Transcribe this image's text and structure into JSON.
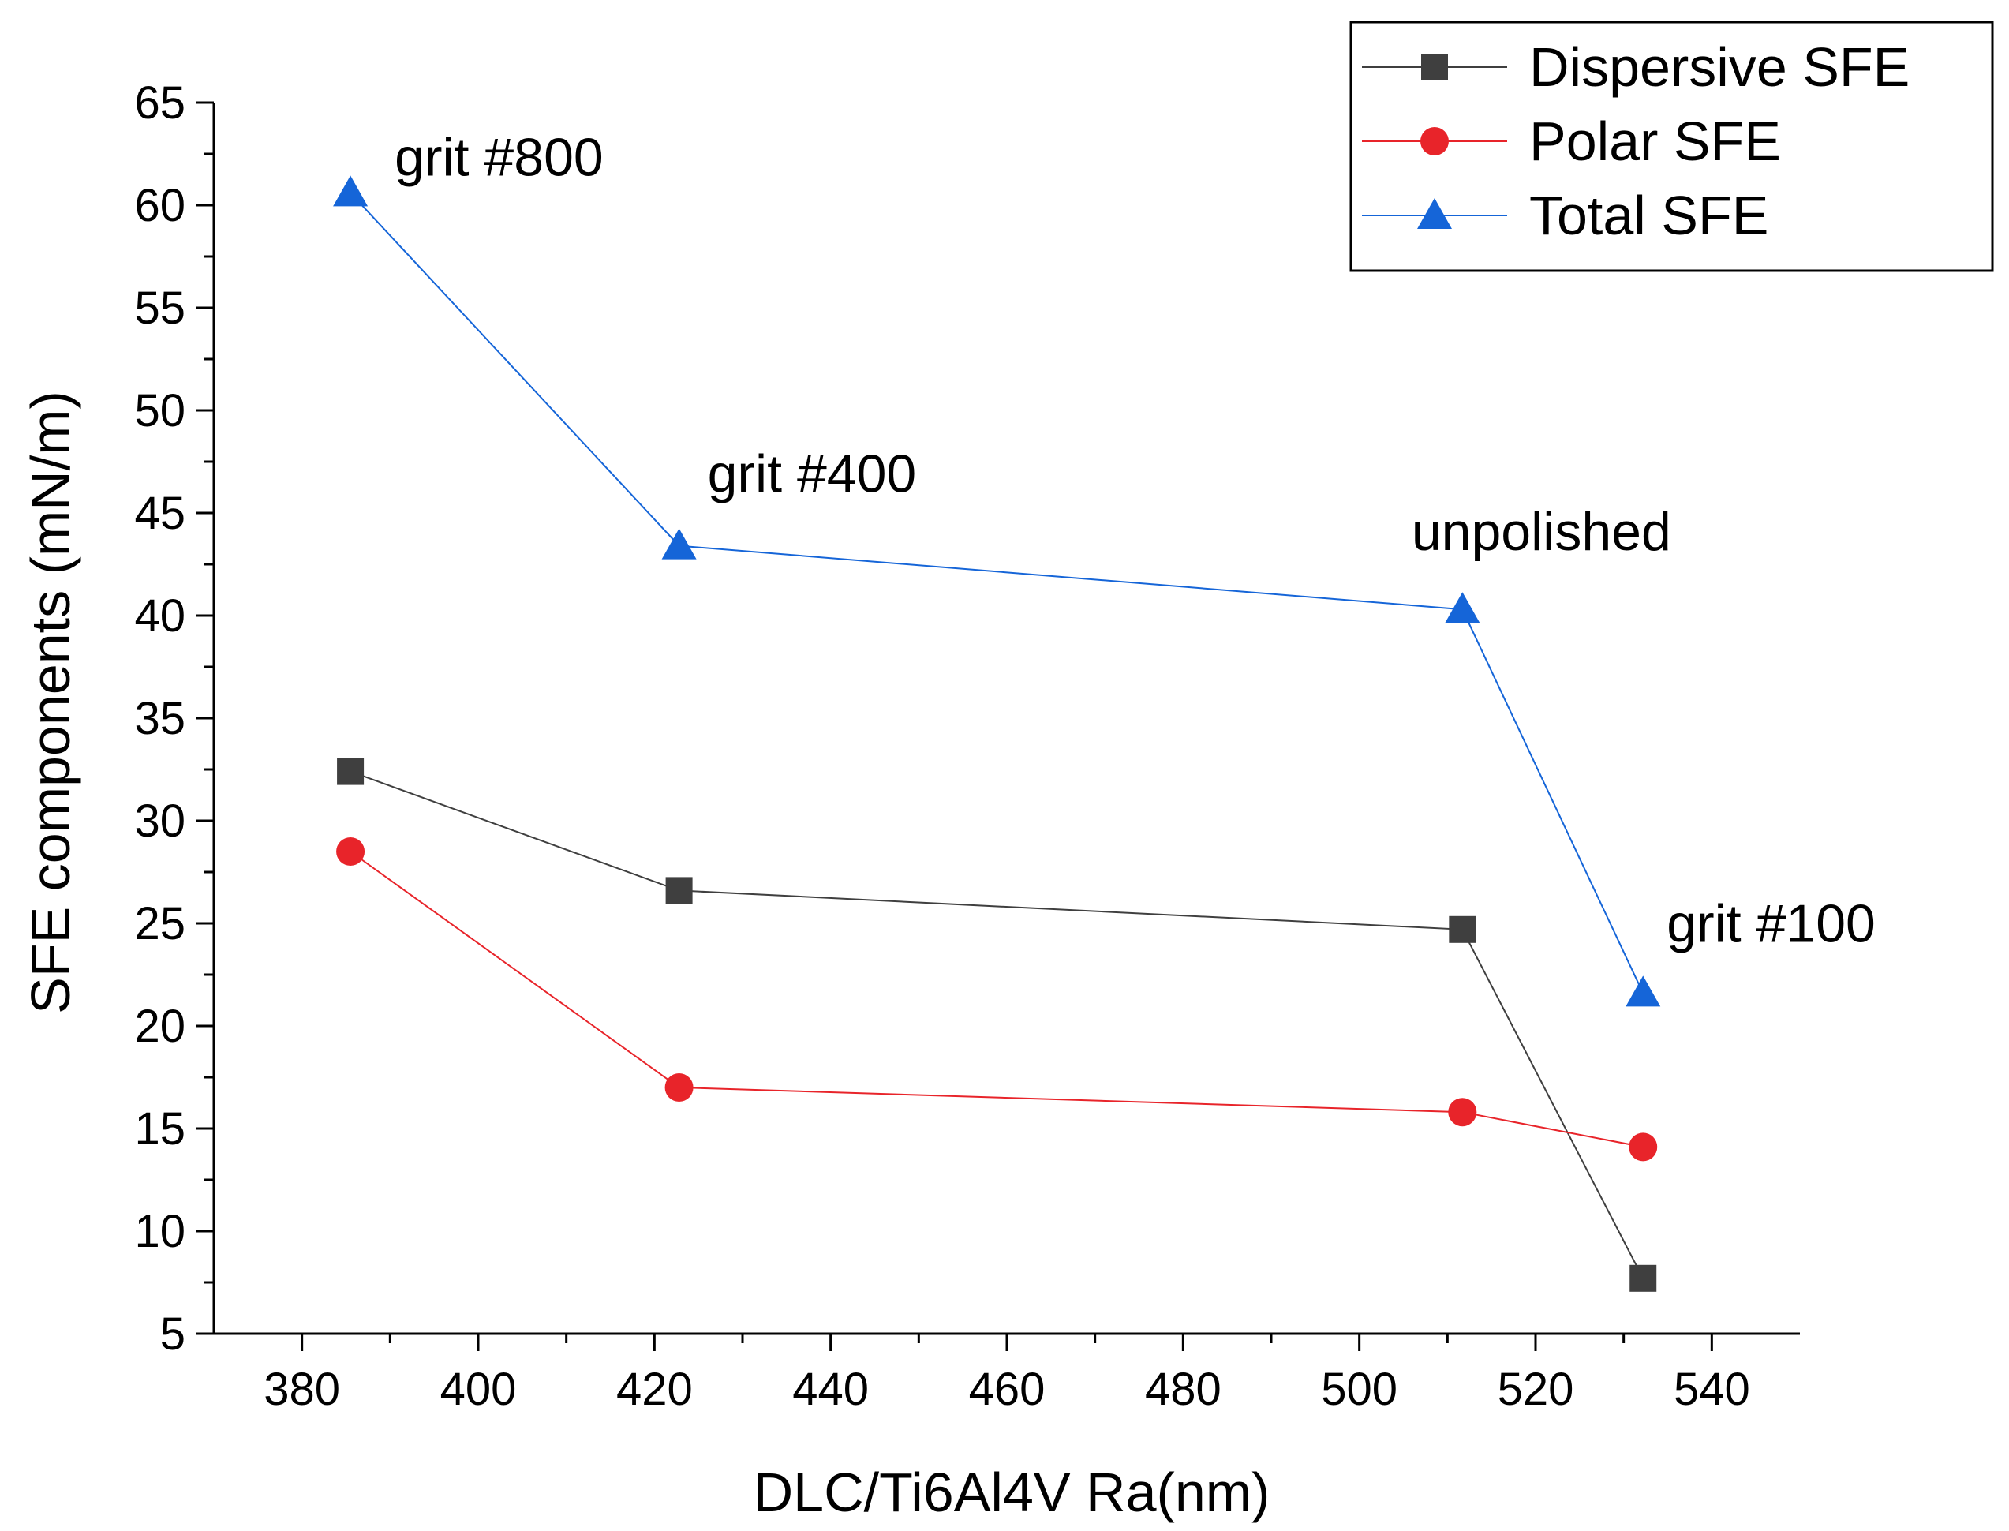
{
  "chart_data": {
    "type": "line",
    "title": "",
    "xlabel": "DLC/Ti6Al4V Ra(nm)",
    "ylabel": "SFE components (mN/m)",
    "xlim": [
      370,
      550
    ],
    "ylim": [
      5,
      65
    ],
    "xticks": [
      380,
      400,
      420,
      440,
      460,
      480,
      500,
      520,
      540
    ],
    "yticks": [
      5,
      10,
      15,
      20,
      25,
      30,
      35,
      40,
      45,
      50,
      55,
      60,
      65
    ],
    "x": [
      385.5,
      422.8,
      511.7,
      532.2
    ],
    "series": [
      {
        "name": "Dispersive SFE",
        "values": [
          32.4,
          26.6,
          24.7,
          7.7
        ],
        "color": "#3f3f3f",
        "marker": "square"
      },
      {
        "name": "Polar SFE",
        "values": [
          28.5,
          17.0,
          15.8,
          14.1
        ],
        "color": "#e8242a",
        "marker": "circle"
      },
      {
        "name": "Total SFE",
        "values": [
          60.6,
          43.4,
          40.3,
          21.6
        ],
        "color": "#1565d8",
        "marker": "triangle"
      }
    ],
    "annotations": [
      {
        "text": "grit #800",
        "x": 385.5,
        "y": 60.6
      },
      {
        "text": "grit #400",
        "x": 422.8,
        "y": 43.4
      },
      {
        "text": "unpolished",
        "x": 511.7,
        "y": 40.3
      },
      {
        "text": "grit #100",
        "x": 532.2,
        "y": 21.6
      }
    ],
    "legend": "top-right",
    "grid": false
  }
}
